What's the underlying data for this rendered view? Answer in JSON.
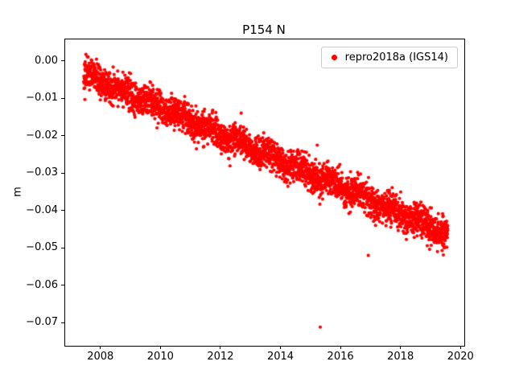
{
  "chart_data": {
    "type": "scatter",
    "title": "P154 N",
    "xlabel": "",
    "ylabel": "m",
    "xlim": [
      2006.8,
      2020.1
    ],
    "ylim": [
      -0.076,
      0.006
    ],
    "grid": false,
    "xticks": [
      2008,
      2010,
      2012,
      2014,
      2016,
      2018,
      2020
    ],
    "xtick_labels": [
      "2008",
      "2010",
      "2012",
      "2014",
      "2016",
      "2018",
      "2020"
    ],
    "yticks": [
      0.0,
      -0.01,
      -0.02,
      -0.03,
      -0.04,
      -0.05,
      -0.06,
      -0.07
    ],
    "ytick_labels": [
      "0.00",
      "−0.01",
      "−0.02",
      "−0.03",
      "−0.04",
      "−0.05",
      "−0.06",
      "−0.07"
    ],
    "legend": {
      "label": "repro2018a (IGS14)",
      "location": "upper right",
      "marker_color": "#ff0000"
    },
    "series": [
      {
        "name": "repro2018a (IGS14)",
        "color": "#ff0000",
        "marker": "dot",
        "marker_radius_px": 2.1,
        "trend": {
          "t_start": 2007.42,
          "t_end": 2019.55,
          "y_start": -0.0033,
          "y_end": -0.0462,
          "noise_sd": 0.0021,
          "seasonal_amp": 0.001,
          "n_points": 3100,
          "seed": 42
        },
        "outliers": [
          [
            2015.3,
            -0.071
          ],
          [
            2015.2,
            -0.0223
          ],
          [
            2016.9,
            -0.0518
          ],
          [
            2019.36,
            -0.0505
          ]
        ]
      }
    ]
  }
}
